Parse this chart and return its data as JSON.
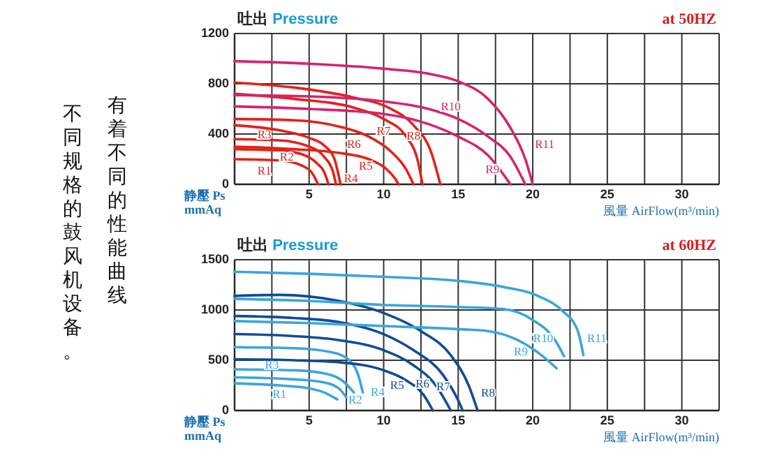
{
  "chart_data": [
    {
      "type": "line",
      "title": "吐出 Pressure",
      "xlabel": "風量 AirFlow(m³/min)",
      "ylabel": "静壓 Ps mmAq",
      "annotations": [
        "at 50HZ",
        "有着不同的性能曲线",
        "不同规格的鼓风机设备。"
      ],
      "xlim": [
        0,
        32.5
      ],
      "ylim": [
        0,
        1200
      ],
      "xticks": [
        {
          "value": 0,
          "label": null
        },
        {
          "value": 2.5,
          "label": null
        },
        5,
        {
          "value": 7.5,
          "label": null
        },
        10,
        {
          "value": 12.5,
          "label": null
        },
        15,
        {
          "value": 17.5,
          "label": null
        },
        20,
        {
          "value": 22.5,
          "label": null
        },
        25,
        {
          "value": 27.5,
          "label": null
        },
        30,
        {
          "value": 32.5,
          "label": null
        }
      ],
      "yticks": [
        0,
        400,
        800,
        1200
      ],
      "grid": true,
      "marker": "none",
      "line_style": "solid",
      "series": [
        {
          "name": "R1",
          "color": "#e32219",
          "x": [
            0,
            3,
            4.5,
            5.2,
            5.6
          ],
          "values": [
            200,
            190,
            150,
            90,
            0
          ]
        },
        {
          "name": "R2",
          "color": "#e32219",
          "x": [
            0,
            3,
            4.5,
            5.5,
            6,
            6.3
          ],
          "values": [
            280,
            270,
            240,
            170,
            100,
            0
          ]
        },
        {
          "name": "R3",
          "color": "#e32219",
          "x": [
            0,
            3,
            5,
            6,
            6.6,
            6.8
          ],
          "values": [
            360,
            350,
            300,
            220,
            100,
            0
          ]
        },
        {
          "name": "R4",
          "color": "#e32219",
          "x": [
            0,
            3,
            5,
            6,
            6.7,
            7.1
          ],
          "values": [
            470,
            430,
            370,
            310,
            200,
            0
          ]
        },
        {
          "name": "R5",
          "color": "#e32219",
          "x": [
            0,
            4,
            7,
            9,
            10.2,
            10.8,
            11
          ],
          "values": [
            300,
            280,
            250,
            200,
            120,
            40,
            0
          ]
        },
        {
          "name": "R6",
          "color": "#e32219",
          "x": [
            0,
            4,
            7,
            9,
            10.5,
            11.5,
            12
          ],
          "values": [
            520,
            510,
            460,
            380,
            260,
            120,
            0
          ]
        },
        {
          "name": "R7",
          "color": "#e32219",
          "x": [
            0,
            4,
            8,
            10,
            11.5,
            12.3,
            12.6
          ],
          "values": [
            720,
            680,
            610,
            520,
            380,
            180,
            0
          ]
        },
        {
          "name": "R8",
          "color": "#e32219",
          "x": [
            0,
            4,
            8,
            10.5,
            12,
            13.2,
            13.8
          ],
          "values": [
            810,
            770,
            690,
            600,
            470,
            250,
            0
          ]
        },
        {
          "name": "R9",
          "color": "#d6246e",
          "x": [
            0,
            5,
            10,
            13,
            15,
            17,
            18.5
          ],
          "values": [
            620,
            600,
            560,
            480,
            380,
            230,
            0
          ]
        },
        {
          "name": "R10",
          "color": "#d6246e",
          "x": [
            0,
            5,
            10,
            13,
            15,
            17,
            18.5,
            19.5
          ],
          "values": [
            710,
            700,
            660,
            600,
            520,
            380,
            220,
            0
          ]
        },
        {
          "name": "R11",
          "color": "#d6246e",
          "x": [
            0,
            5,
            10,
            13,
            15,
            17,
            18.5,
            19.5,
            20
          ],
          "values": [
            980,
            960,
            920,
            880,
            820,
            680,
            450,
            200,
            0
          ]
        }
      ]
    },
    {
      "type": "line",
      "title": "吐出 Pressure",
      "xlabel": "風量 AirFlow(m³/min)",
      "ylabel": "静壓 Ps mmAq",
      "annotations": [
        "at 60HZ"
      ],
      "xlim": [
        0,
        32.5
      ],
      "ylim": [
        0,
        1500
      ],
      "xticks": [
        {
          "value": 0,
          "label": null
        },
        {
          "value": 2.5,
          "label": null
        },
        5,
        {
          "value": 7.5,
          "label": null
        },
        10,
        {
          "value": 12.5,
          "label": null
        },
        15,
        {
          "value": 17.5,
          "label": null
        },
        20,
        {
          "value": 22.5,
          "label": null
        },
        25,
        {
          "value": 27.5,
          "label": null
        },
        30,
        {
          "value": 32.5,
          "label": null
        }
      ],
      "yticks": [
        0,
        500,
        1000,
        1500
      ],
      "grid": true,
      "marker": "none",
      "line_style": "solid",
      "series": [
        {
          "name": "R1",
          "color": "#3aa6dc",
          "x": [
            0,
            3,
            5,
            6,
            6.9
          ],
          "values": [
            270,
            250,
            220,
            180,
            110
          ]
        },
        {
          "name": "R2",
          "color": "#3aa6dc",
          "x": [
            0,
            4,
            6,
            7,
            7.5
          ],
          "values": [
            330,
            310,
            280,
            220,
            130
          ]
        },
        {
          "name": "R3",
          "color": "#3aa6dc",
          "x": [
            0,
            4,
            6,
            7.2,
            8
          ],
          "values": [
            410,
            400,
            370,
            300,
            180
          ]
        },
        {
          "name": "R4",
          "color": "#3aa6dc",
          "x": [
            0,
            4,
            6.5,
            7.7,
            8.3,
            8.6
          ],
          "values": [
            630,
            620,
            580,
            500,
            350,
            180
          ]
        },
        {
          "name": "R5",
          "color": "#0f4d96",
          "x": [
            0,
            4,
            7,
            10,
            11.5,
            12.7,
            13.3
          ],
          "values": [
            510,
            500,
            480,
            400,
            300,
            150,
            0
          ]
        },
        {
          "name": "R6",
          "color": "#0f4d96",
          "x": [
            0,
            4,
            7,
            10,
            12,
            13.5,
            14.5
          ],
          "values": [
            760,
            740,
            700,
            600,
            450,
            250,
            0
          ]
        },
        {
          "name": "R7",
          "color": "#0f4d96",
          "x": [
            0,
            4,
            7,
            10,
            12,
            14,
            15,
            15.3
          ],
          "values": [
            940,
            920,
            880,
            760,
            600,
            350,
            100,
            0
          ]
        },
        {
          "name": "R8",
          "color": "#0f4d96",
          "x": [
            0,
            3,
            7,
            10,
            12.5,
            14.5,
            15.7,
            16.3
          ],
          "values": [
            1140,
            1150,
            1090,
            970,
            790,
            550,
            250,
            0
          ]
        },
        {
          "name": "R9",
          "color": "#3aa6dc",
          "x": [
            0,
            5,
            10,
            15,
            17,
            19,
            20.5,
            21.6
          ],
          "values": [
            890,
            870,
            840,
            810,
            790,
            700,
            560,
            420
          ]
        },
        {
          "name": "R10",
          "color": "#3aa6dc",
          "x": [
            0,
            5,
            10,
            15,
            18,
            20,
            21.5,
            22.1
          ],
          "values": [
            1110,
            1090,
            1050,
            1030,
            1010,
            900,
            700,
            540
          ]
        },
        {
          "name": "R11",
          "color": "#3aa6dc",
          "x": [
            0,
            5,
            10,
            15,
            18,
            20.5,
            22,
            23,
            23.4
          ],
          "values": [
            1380,
            1360,
            1330,
            1290,
            1230,
            1130,
            990,
            800,
            550
          ]
        }
      ]
    }
  ]
}
